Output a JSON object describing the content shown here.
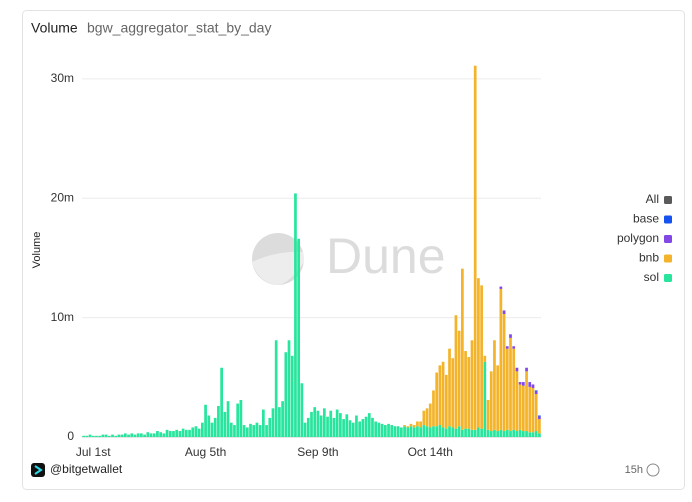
{
  "chart_data": {
    "type": "stacked-bar",
    "title": "Volume",
    "subtitle": "bgw_aggregator_stat_by_day",
    "y_label": "Volume",
    "watermark": "Dune",
    "footer": "@bitgetwallet",
    "age": "15h",
    "ylim": [
      0,
      33000000
    ],
    "yticks": [
      0,
      {
        "value": 10000000,
        "label": "10m"
      },
      {
        "value": 20000000,
        "label": "20m"
      },
      {
        "value": 30000000,
        "label": "30m"
      }
    ],
    "grid": true,
    "legend": "right",
    "categories": [
      null,
      null,
      null,
      "Jul 1st",
      null,
      null,
      null,
      null,
      null,
      null,
      null,
      null,
      null,
      null,
      null,
      null,
      null,
      null,
      null,
      null,
      null,
      null,
      null,
      null,
      null,
      null,
      null,
      null,
      null,
      null,
      null,
      null,
      null,
      null,
      null,
      null,
      null,
      null,
      "Aug 5th",
      null,
      null,
      null,
      null,
      null,
      null,
      null,
      null,
      null,
      null,
      null,
      null,
      null,
      null,
      null,
      null,
      null,
      null,
      null,
      null,
      null,
      null,
      null,
      null,
      null,
      null,
      null,
      null,
      null,
      null,
      null,
      null,
      null,
      null,
      "Sep 9th",
      null,
      null,
      null,
      null,
      null,
      null,
      null,
      null,
      null,
      null,
      null,
      null,
      null,
      null,
      null,
      null,
      null,
      null,
      null,
      null,
      null,
      null,
      null,
      null,
      null,
      null,
      null,
      null,
      null,
      null,
      null,
      null,
      null,
      null,
      "Oct 14th",
      null,
      null,
      null,
      null,
      null,
      null,
      null,
      null,
      null,
      null,
      null,
      null,
      null,
      null,
      null,
      null,
      null,
      null,
      null,
      null,
      null,
      null,
      null,
      null,
      null,
      null,
      null,
      null,
      null,
      null,
      null,
      null,
      null,
      null
    ],
    "series": [
      {
        "name": "All",
        "color": "#5a5a5a",
        "values": [
          null,
          null,
          null,
          null,
          null,
          null,
          null,
          null,
          null,
          null,
          null,
          null,
          null,
          null,
          null,
          null,
          null,
          null,
          null,
          null,
          null,
          null,
          null,
          null,
          null,
          null,
          null,
          null,
          null,
          null,
          null,
          null,
          null,
          null,
          null,
          null,
          null,
          null,
          null,
          null,
          null,
          null,
          null,
          null,
          null,
          null,
          null,
          null,
          null,
          null,
          null,
          null,
          null,
          null,
          null,
          null,
          null,
          null,
          null,
          null,
          null,
          null,
          null,
          null,
          null,
          null,
          null,
          null,
          null,
          null,
          null,
          null,
          null,
          null,
          null,
          null,
          null,
          null,
          null,
          null,
          null,
          null,
          null,
          null,
          null,
          null,
          null,
          null,
          null,
          null,
          null,
          null,
          null,
          null,
          null,
          null,
          null,
          null,
          null,
          null,
          null,
          null,
          null,
          null,
          null,
          null,
          null,
          null,
          null,
          null,
          null,
          null,
          null,
          null,
          null,
          null,
          null,
          null,
          null,
          null,
          null,
          null,
          null,
          null,
          null,
          null,
          null,
          null,
          null,
          null,
          null,
          null,
          null,
          null,
          null,
          null,
          null,
          null,
          null,
          null,
          null,
          null,
          null
        ]
      },
      {
        "name": "base",
        "color": "#1652f0",
        "values": [
          0,
          0,
          0,
          0,
          0,
          0,
          0,
          0,
          0,
          0,
          0,
          0,
          0,
          0,
          0,
          0,
          0,
          0,
          0,
          0,
          0,
          0,
          0,
          0,
          0,
          0,
          0,
          0,
          0,
          0,
          0,
          0,
          0,
          0,
          0,
          0,
          0,
          0,
          0,
          0,
          0,
          0,
          0,
          0,
          0,
          0,
          0,
          0,
          0,
          0,
          0,
          0,
          0,
          0,
          0,
          0,
          0,
          0,
          0,
          0,
          0,
          0,
          0,
          0,
          0,
          0,
          0,
          0,
          0,
          0,
          0,
          0,
          0,
          0,
          0,
          0,
          0,
          0,
          0,
          0,
          0,
          0,
          0,
          0,
          0,
          0,
          0,
          0,
          0,
          0,
          0,
          0,
          0,
          0,
          0,
          0,
          0,
          0,
          0,
          0,
          0,
          0,
          0,
          0,
          0,
          0,
          0,
          0,
          0,
          0,
          0,
          0,
          0,
          0,
          0,
          0,
          0,
          0,
          0,
          0,
          0,
          0,
          0,
          0,
          0,
          0,
          0,
          0,
          0,
          0,
          0,
          0,
          0,
          0,
          0,
          0,
          0,
          0,
          0,
          0,
          0,
          100000,
          100000
        ]
      },
      {
        "name": "polygon",
        "color": "#8247e5",
        "values": [
          0,
          0,
          0,
          0,
          0,
          0,
          0,
          0,
          0,
          0,
          0,
          0,
          0,
          0,
          0,
          0,
          0,
          0,
          0,
          0,
          0,
          0,
          0,
          0,
          0,
          0,
          0,
          0,
          0,
          0,
          0,
          0,
          0,
          0,
          0,
          0,
          0,
          0,
          0,
          0,
          0,
          0,
          0,
          0,
          0,
          0,
          0,
          0,
          0,
          0,
          0,
          0,
          0,
          0,
          0,
          0,
          0,
          0,
          0,
          0,
          0,
          0,
          0,
          0,
          0,
          0,
          0,
          0,
          0,
          0,
          0,
          0,
          0,
          0,
          0,
          0,
          0,
          0,
          0,
          0,
          0,
          0,
          0,
          0,
          0,
          0,
          0,
          0,
          0,
          0,
          0,
          0,
          0,
          0,
          0,
          0,
          0,
          0,
          0,
          0,
          0,
          0,
          0,
          0,
          0,
          0,
          0,
          0,
          0,
          0,
          0,
          0,
          0,
          0,
          0,
          0,
          0,
          0,
          0,
          0,
          0,
          0,
          0,
          0,
          0,
          0,
          0,
          0,
          0,
          0,
          200000,
          300000,
          200000,
          300000,
          200000,
          300000,
          200000,
          300000,
          300000,
          400000,
          300000,
          200000,
          200000
        ]
      },
      {
        "name": "bnb",
        "color": "#f3b32a",
        "values": [
          0,
          0,
          0,
          0,
          0,
          0,
          0,
          0,
          0,
          0,
          0,
          0,
          0,
          0,
          0,
          0,
          0,
          0,
          0,
          0,
          0,
          0,
          0,
          0,
          0,
          0,
          0,
          0,
          0,
          0,
          0,
          0,
          0,
          0,
          0,
          0,
          0,
          0,
          0,
          0,
          0,
          0,
          0,
          0,
          0,
          0,
          0,
          0,
          0,
          0,
          0,
          0,
          0,
          0,
          0,
          0,
          0,
          0,
          0,
          0,
          0,
          0,
          0,
          0,
          0,
          0,
          0,
          0,
          0,
          0,
          0,
          0,
          0,
          0,
          0,
          0,
          0,
          0,
          0,
          0,
          0,
          0,
          0,
          0,
          0,
          0,
          0,
          0,
          0,
          0,
          0,
          0,
          0,
          0,
          0,
          0,
          0,
          0,
          0,
          0,
          100000,
          100000,
          200000,
          200000,
          400000,
          500000,
          1200000,
          1500000,
          2000000,
          3000000,
          4500000,
          5000000,
          5500000,
          4500000,
          6500000,
          5800000,
          9500000,
          8000000,
          13500000,
          6500000,
          6000000,
          7500000,
          30500000,
          12500000,
          12000000,
          500000,
          2500000,
          5000000,
          7500000,
          5500000,
          11800000,
          9800000,
          6800000,
          7800000,
          6800000,
          5000000,
          3800000,
          3800000,
          5000000,
          3800000,
          3700000,
          3100000,
          1200000
        ]
      },
      {
        "name": "sol",
        "color": "#27e59c",
        "values": [
          100000,
          100000,
          200000,
          100000,
          100000,
          100000,
          200000,
          200000,
          100000,
          200000,
          100000,
          200000,
          200000,
          300000,
          200000,
          300000,
          200000,
          300000,
          300000,
          200000,
          400000,
          300000,
          300000,
          500000,
          400000,
          300000,
          600000,
          500000,
          500000,
          600000,
          500000,
          700000,
          600000,
          600000,
          800000,
          900000,
          700000,
          1200000,
          2700000,
          1800000,
          1200000,
          1600000,
          2600000,
          5800000,
          2100000,
          3000000,
          1200000,
          1000000,
          2800000,
          3100000,
          1000000,
          800000,
          1100000,
          1000000,
          1200000,
          1000000,
          2300000,
          1000000,
          1600000,
          2400000,
          8100000,
          2500000,
          3000000,
          7100000,
          8100000,
          6800000,
          20400000,
          16600000,
          4500000,
          1200000,
          1600000,
          2100000,
          2500000,
          2200000,
          1800000,
          2400000,
          1700000,
          2200000,
          1600000,
          2300000,
          2000000,
          1500000,
          1900000,
          1400000,
          1200000,
          1800000,
          1300000,
          1500000,
          1700000,
          2000000,
          1600000,
          1300000,
          1200000,
          1100000,
          1000000,
          1100000,
          1000000,
          900000,
          900000,
          800000,
          900000,
          800000,
          900000,
          800000,
          900000,
          800000,
          1000000,
          900000,
          800000,
          900000,
          900000,
          1000000,
          800000,
          700000,
          900000,
          800000,
          700000,
          900000,
          600000,
          700000,
          700000,
          600000,
          600000,
          800000,
          700000,
          6300000,
          600000,
          500000,
          600000,
          500000,
          600000,
          500000,
          600000,
          500000,
          600000,
          500000,
          600000,
          500000,
          500000,
          400000,
          400000,
          500000,
          300000
        ]
      }
    ]
  }
}
